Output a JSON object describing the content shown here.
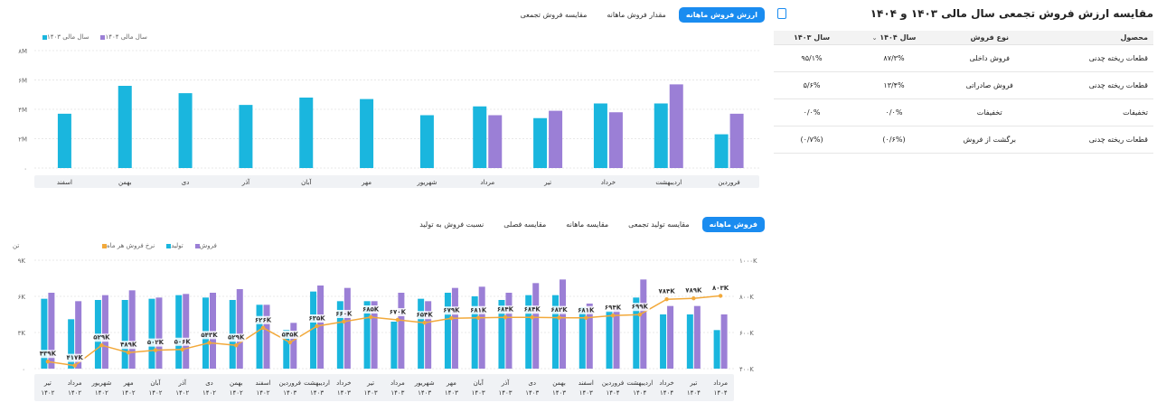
{
  "top_tabs": {
    "items": [
      "ارزش فروش ماهانه",
      "مقدار فروش ماهانه",
      "مقایسه فروش تجمعی"
    ],
    "active_index": 0
  },
  "bottom_tabs": {
    "items": [
      "فروش ماهانه",
      "مقایسه تولید تجمعی",
      "مقایسه ماهانه",
      "مقایسه فصلی",
      "نسبت فروش به تولید"
    ],
    "active_index": 0
  },
  "table_panel": {
    "title": "مقایسه ارزش فروش تجمعی سال مالی ۱۴۰۳ و ۱۴۰۴",
    "columns": [
      "محصول",
      "نوع فروش",
      "سال ۱۴۰۴",
      "سال ۱۴۰۳"
    ],
    "rows": [
      [
        "قطعات ریخته چدنی",
        "فروش داخلی",
        "۸۷/۳%",
        "۹۵/۱%"
      ],
      [
        "قطعات ریخته چدنی",
        "فروش صادراتی",
        "۱۳/۴%",
        "۵/۶%"
      ],
      [
        "تخفیفات",
        "تخفیفات",
        "۰/۰%",
        "۰/۰%"
      ],
      [
        "قطعات ریخته چدنی",
        "برگشت از فروش",
        "(۰/۶%)",
        "(۰/۷%)"
      ]
    ]
  },
  "colors": {
    "series_1403": "#1ab6de",
    "series_1404": "#9b7fd6",
    "production": "#1ab6de",
    "sales": "#9b7fd6",
    "rate": "#f2a93b",
    "active_tab": "#1a8cf0"
  },
  "chart_data": [
    {
      "type": "bar",
      "legend_position": "top-left",
      "categories": [
        "فروردین",
        "اردیبهشت",
        "خرداد",
        "تیر",
        "مرداد",
        "شهریور",
        "مهر",
        "آبان",
        "آذر",
        "دی",
        "بهمن",
        "اسفند"
      ],
      "series": [
        {
          "name": "سال مالی ۱۴۰۳",
          "values": [
            2.3,
            4.4,
            4.4,
            3.4,
            4.2,
            3.6,
            4.7,
            4.8,
            4.3,
            5.1,
            5.6,
            3.7
          ]
        },
        {
          "name": "سال مالی ۱۴۰۴",
          "values": [
            3.7,
            5.7,
            3.8,
            3.9,
            3.6,
            null,
            null,
            null,
            null,
            null,
            null,
            null
          ]
        }
      ],
      "ylim": [
        0,
        8
      ],
      "ytick_labels": [
        "۰",
        "۲M",
        "۴M",
        "۶M",
        "۸M"
      ]
    },
    {
      "type": "bar",
      "legend_position": "top-left",
      "categories": [
        "تیر ۱۴۰۲",
        "مرداد ۱۴۰۲",
        "شهریور ۱۴۰۲",
        "مهر ۱۴۰۲",
        "آبان ۱۴۰۲",
        "آذر ۱۴۰۲",
        "دی ۱۴۰۲",
        "بهمن ۱۴۰۲",
        "اسفند ۱۴۰۲",
        "فروردین ۱۴۰۳",
        "اردیبهشت ۱۴۰۳",
        "خرداد ۱۴۰۳",
        "تیر ۱۴۰۳",
        "مرداد ۱۴۰۳",
        "شهریور ۱۴۰۳",
        "مهر ۱۴۰۳",
        "آبان ۱۴۰۳",
        "آذر ۱۴۰۳",
        "دی ۱۴۰۳",
        "بهمن ۱۴۰۳",
        "اسفند ۱۴۰۳",
        "فروردین ۱۴۰۴",
        "اردیبهشت ۱۴۰۴",
        "خرداد ۱۴۰۴",
        "تیر ۱۴۰۴",
        "مرداد ۱۴۰۴"
      ],
      "series": [
        {
          "name": "فروش",
          "values": [
            6.3,
            5.6,
            6.1,
            6.5,
            5.9,
            6.2,
            6.3,
            6.6,
            5.3,
            3.8,
            6.9,
            6.7,
            5.6,
            6.3,
            5.6,
            6.7,
            6.8,
            6.3,
            7.1,
            7.4,
            5.4,
            5.0,
            7.4,
            5.2,
            5.2,
            4.5
          ]
        },
        {
          "name": "تولید",
          "values": [
            5.8,
            4.1,
            5.7,
            5.7,
            5.8,
            6.1,
            5.9,
            5.7,
            5.3,
            3.2,
            6.4,
            5.6,
            5.6,
            3.9,
            5.8,
            6.3,
            6.0,
            5.7,
            6.1,
            6.1,
            5.1,
            4.8,
            5.9,
            4.5,
            4.5,
            3.2
          ]
        },
        {
          "name": "نرخ فروش هر ماه",
          "labels": [
            "۴۳۹K",
            "۴۱۷K",
            "۵۲۹K",
            "۴۸۹K",
            "۵۰۲K",
            "۵۰۶K",
            "۵۴۳K",
            "۵۲۹K",
            "۶۲۶K",
            "۵۴۵K",
            "۶۳۵K",
            "۶۶۰K",
            "۶۸۵K",
            "۶۷۰K",
            "۶۵۴K",
            "۶۷۹K",
            "۶۸۱K",
            "۶۸۴K",
            "۶۸۴K",
            "۶۸۲K",
            "۶۸۱K",
            "۶۹۴K",
            "۶۹۹K",
            "۷۸۴K",
            "۷۸۹K",
            "۸۰۳K"
          ],
          "values": [
            439,
            417,
            529,
            489,
            502,
            506,
            543,
            529,
            626,
            545,
            635,
            660,
            685,
            670,
            654,
            679,
            681,
            684,
            684,
            682,
            681,
            694,
            699,
            784,
            789,
            803
          ]
        }
      ],
      "y_left": {
        "ylim": [
          0,
          9
        ],
        "tick_labels": [
          "۰",
          "۳K",
          "۶K",
          "۹K"
        ],
        "unit": "تن"
      },
      "y_right": {
        "ylim": [
          400,
          1000
        ],
        "tick_labels": [
          "۴۰۰K",
          "۶۰۰K",
          "۸۰۰K",
          "۱۰۰۰K"
        ]
      }
    }
  ]
}
